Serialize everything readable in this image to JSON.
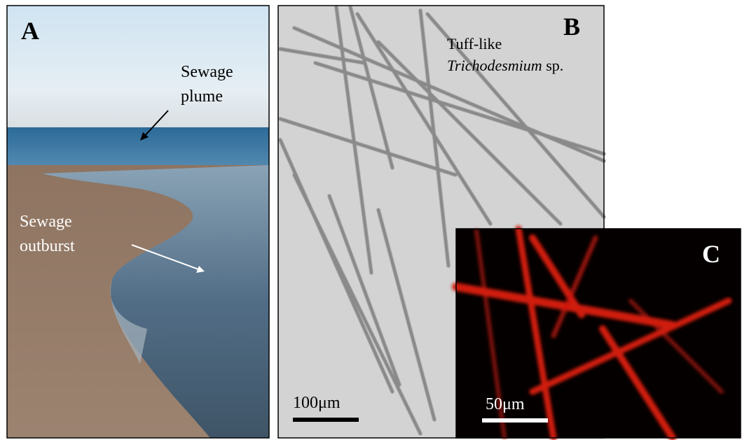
{
  "panels": [
    {
      "label": "A",
      "annotations": [
        {
          "lines": [
            "Sewage",
            "plume"
          ]
        },
        {
          "lines": [
            "Sewage",
            "outburst"
          ]
        }
      ]
    },
    {
      "label": "B",
      "annotation": {
        "line1": "Tuff-like",
        "line2_italic": "Trichodesmium",
        "line2_rest": "sp."
      },
      "scale_bar": "100μm"
    },
    {
      "label": "C",
      "scale_bar": "50μm"
    }
  ]
}
